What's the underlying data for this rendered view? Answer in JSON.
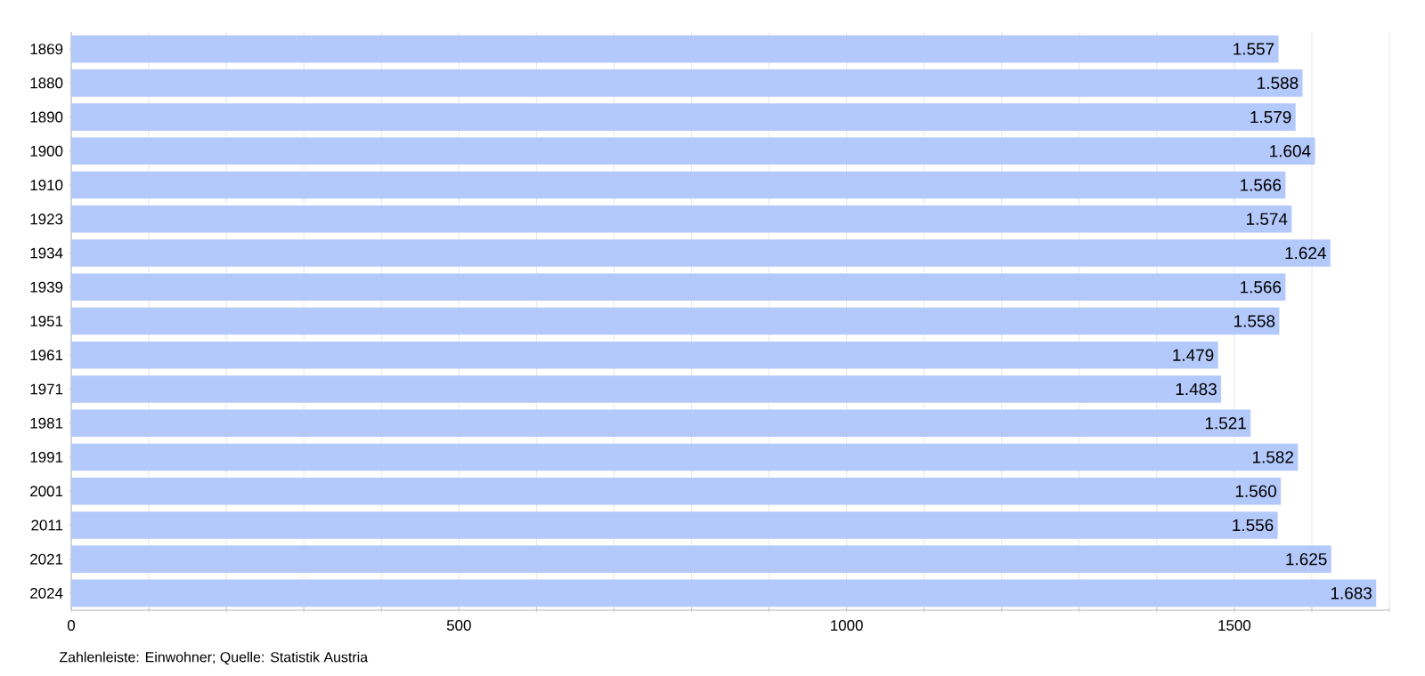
{
  "chart_data": {
    "type": "bar",
    "orientation": "horizontal",
    "categories": [
      "1869",
      "1880",
      "1890",
      "1900",
      "1910",
      "1923",
      "1934",
      "1939",
      "1951",
      "1961",
      "1971",
      "1981",
      "1991",
      "2001",
      "2011",
      "2021",
      "2024"
    ],
    "values": [
      1557,
      1588,
      1579,
      1604,
      1566,
      1574,
      1624,
      1566,
      1558,
      1479,
      1483,
      1521,
      1582,
      1560,
      1556,
      1625,
      1683
    ],
    "value_labels": [
      "1.557",
      "1.588",
      "1.579",
      "1.604",
      "1.566",
      "1.574",
      "1.624",
      "1.566",
      "1.558",
      "1.479",
      "1.483",
      "1.521",
      "1.582",
      "1.560",
      "1.556",
      "1.625",
      "1.683"
    ],
    "color": "#b3c8fb",
    "xlim": [
      0,
      1700
    ],
    "xticks": [
      0,
      {
        "value": 100,
        "label": null
      },
      {
        "value": 200,
        "label": null
      },
      {
        "value": 300,
        "label": null
      },
      {
        "value": 400,
        "label": null
      },
      500,
      {
        "value": 600,
        "label": null
      },
      {
        "value": 700,
        "label": null
      },
      {
        "value": 800,
        "label": null
      },
      {
        "value": 900,
        "label": null
      },
      1000,
      {
        "value": 1100,
        "label": null
      },
      {
        "value": 1200,
        "label": null
      },
      {
        "value": 1300,
        "label": null
      },
      {
        "value": 1400,
        "label": null
      },
      1500,
      {
        "value": 1600,
        "label": null
      },
      {
        "value": 1700,
        "label": null
      }
    ],
    "grid": "x",
    "annotations": [
      "Zahlenleiste: Einwohner; Quelle: Statistik Austria"
    ]
  }
}
